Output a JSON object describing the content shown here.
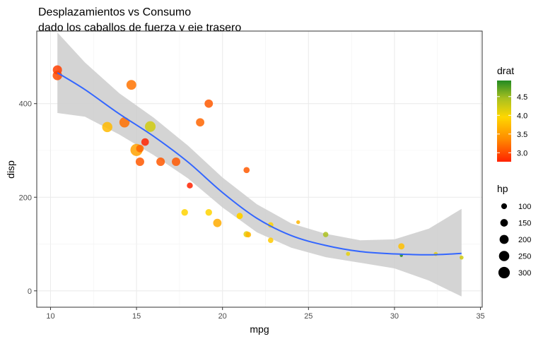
{
  "chart_data": {
    "type": "scatter",
    "title": "Desplazamientos vs Consumo",
    "subtitle": "dado los caballos de fuerza y eje trasero",
    "xlabel": "mpg",
    "ylabel": "disp",
    "xlim": [
      9.2,
      35.1
    ],
    "ylim": [
      -35,
      555
    ],
    "x_ticks": [
      10,
      15,
      20,
      25,
      30,
      35
    ],
    "y_ticks": [
      0,
      200,
      400
    ],
    "grid": true,
    "theme": "bw",
    "color_legend": {
      "title": "drat",
      "range": [
        2.76,
        4.93
      ],
      "ticks": [
        3.0,
        3.5,
        4.0,
        4.5
      ],
      "tick_labels": [
        "3.0",
        "3.5",
        "4.0",
        "4.5"
      ],
      "colors": [
        "#ff2200",
        "#ff8800",
        "#ffd700",
        "#a8c020",
        "#228b22"
      ]
    },
    "size_legend": {
      "title": "hp",
      "values": [
        100,
        150,
        200,
        250,
        300
      ],
      "labels": [
        "100",
        "150",
        "200",
        "250",
        "300"
      ],
      "range": [
        52,
        335
      ]
    },
    "points": [
      {
        "x": 21.0,
        "y": 160,
        "hp": 110,
        "drat": 3.9
      },
      {
        "x": 21.0,
        "y": 160,
        "hp": 110,
        "drat": 3.9
      },
      {
        "x": 22.8,
        "y": 108,
        "hp": 93,
        "drat": 3.85
      },
      {
        "x": 21.4,
        "y": 258,
        "hp": 110,
        "drat": 3.08
      },
      {
        "x": 18.7,
        "y": 360,
        "hp": 175,
        "drat": 3.15
      },
      {
        "x": 18.1,
        "y": 225,
        "hp": 105,
        "drat": 2.76
      },
      {
        "x": 14.3,
        "y": 360,
        "hp": 245,
        "drat": 3.21
      },
      {
        "x": 24.4,
        "y": 146.7,
        "hp": 62,
        "drat": 3.69
      },
      {
        "x": 22.8,
        "y": 140.8,
        "hp": 95,
        "drat": 3.92
      },
      {
        "x": 19.2,
        "y": 167.6,
        "hp": 123,
        "drat": 3.92
      },
      {
        "x": 17.8,
        "y": 167.6,
        "hp": 123,
        "drat": 3.92
      },
      {
        "x": 16.4,
        "y": 275.8,
        "hp": 180,
        "drat": 3.07
      },
      {
        "x": 17.3,
        "y": 275.8,
        "hp": 180,
        "drat": 3.07
      },
      {
        "x": 15.2,
        "y": 275.8,
        "hp": 180,
        "drat": 3.07
      },
      {
        "x": 10.4,
        "y": 472,
        "hp": 205,
        "drat": 2.93
      },
      {
        "x": 10.4,
        "y": 460,
        "hp": 215,
        "drat": 3.0
      },
      {
        "x": 14.7,
        "y": 440,
        "hp": 230,
        "drat": 3.23
      },
      {
        "x": 32.4,
        "y": 78.7,
        "hp": 66,
        "drat": 4.08
      },
      {
        "x": 30.4,
        "y": 75.7,
        "hp": 52,
        "drat": 4.93
      },
      {
        "x": 33.9,
        "y": 71.1,
        "hp": 65,
        "drat": 4.22
      },
      {
        "x": 21.5,
        "y": 120.1,
        "hp": 97,
        "drat": 3.7
      },
      {
        "x": 15.5,
        "y": 318,
        "hp": 150,
        "drat": 2.76
      },
      {
        "x": 15.2,
        "y": 304,
        "hp": 150,
        "drat": 3.15
      },
      {
        "x": 13.3,
        "y": 350,
        "hp": 245,
        "drat": 3.73
      },
      {
        "x": 19.2,
        "y": 400,
        "hp": 175,
        "drat": 3.08
      },
      {
        "x": 27.3,
        "y": 79,
        "hp": 66,
        "drat": 4.08
      },
      {
        "x": 26.0,
        "y": 120.3,
        "hp": 91,
        "drat": 4.43
      },
      {
        "x": 30.4,
        "y": 95.1,
        "hp": 113,
        "drat": 3.77
      },
      {
        "x": 15.8,
        "y": 351,
        "hp": 264,
        "drat": 4.22
      },
      {
        "x": 19.7,
        "y": 145,
        "hp": 175,
        "drat": 3.62
      },
      {
        "x": 15.0,
        "y": 301,
        "hp": 335,
        "drat": 3.54
      },
      {
        "x": 21.4,
        "y": 121,
        "hp": 109,
        "drat": 4.11
      }
    ],
    "smooth": {
      "method": "loess",
      "color": "#3366ff",
      "band_color": "#cccccc",
      "fit": [
        {
          "x": 10.4,
          "y": 466,
          "lo": 380,
          "hi": 552
        },
        {
          "x": 12.0,
          "y": 430,
          "lo": 372,
          "hi": 488
        },
        {
          "x": 14.0,
          "y": 378,
          "lo": 334,
          "hi": 422
        },
        {
          "x": 16.0,
          "y": 330,
          "lo": 290,
          "hi": 370
        },
        {
          "x": 18.0,
          "y": 275,
          "lo": 240,
          "hi": 310
        },
        {
          "x": 20.0,
          "y": 210,
          "lo": 178,
          "hi": 242
        },
        {
          "x": 22.0,
          "y": 155,
          "lo": 125,
          "hi": 185
        },
        {
          "x": 24.0,
          "y": 118,
          "lo": 92,
          "hi": 144
        },
        {
          "x": 26.0,
          "y": 97,
          "lo": 72,
          "hi": 122
        },
        {
          "x": 28.0,
          "y": 84,
          "lo": 60,
          "hi": 108
        },
        {
          "x": 30.0,
          "y": 79,
          "lo": 48,
          "hi": 110
        },
        {
          "x": 32.0,
          "y": 77,
          "lo": 22,
          "hi": 133
        },
        {
          "x": 33.9,
          "y": 80,
          "lo": -12,
          "hi": 175
        }
      ]
    }
  }
}
